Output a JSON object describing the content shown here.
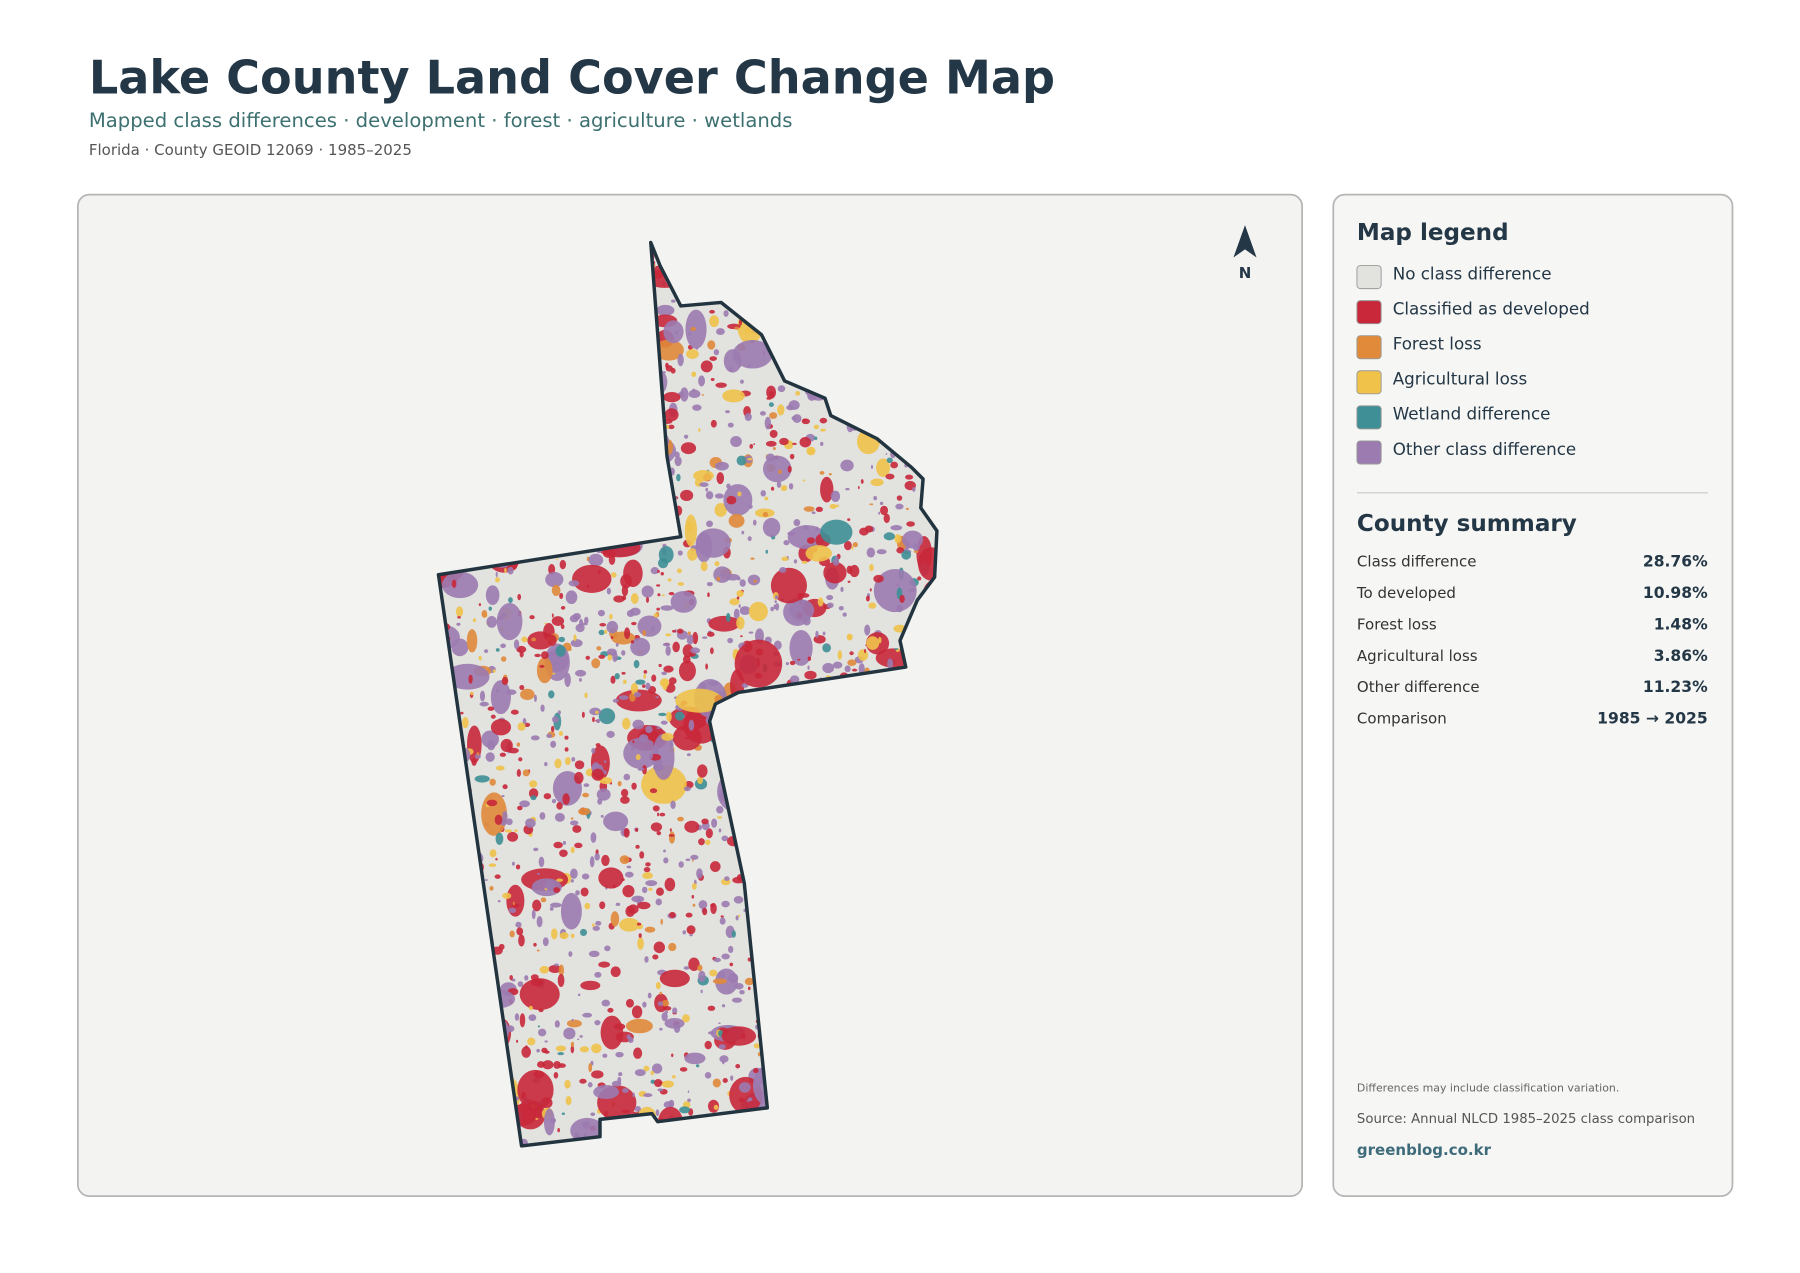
{
  "header": {
    "title": "Lake County Land Cover Change Map",
    "subtitle": "Mapped class differences · development · forest · agriculture · wetlands",
    "meta": "Florida · County GEOID 12069 · 1985–2025"
  },
  "map": {
    "north_label": "N"
  },
  "legend": {
    "title": "Map legend",
    "items": [
      {
        "label": "No class difference",
        "color": "#e2e2df"
      },
      {
        "label": "Classified as developed",
        "color": "#c8283a"
      },
      {
        "label": "Forest loss",
        "color": "#e08a3a"
      },
      {
        "label": "Agricultural loss",
        "color": "#f0c24a"
      },
      {
        "label": "Wetland difference",
        "color": "#3e8f96"
      },
      {
        "label": "Other class difference",
        "color": "#9b7bb0"
      }
    ]
  },
  "summary": {
    "title": "County summary",
    "rows": [
      [
        "Class difference",
        "28.76%"
      ],
      [
        "To developed",
        "10.98%"
      ],
      [
        "Forest loss",
        "1.48%"
      ],
      [
        "Agricultural loss",
        "3.86%"
      ],
      [
        "Other difference",
        "11.23%"
      ],
      [
        "Comparison",
        "1985 → 2025"
      ]
    ]
  },
  "footer": {
    "note": "Differences may include classification variation.",
    "source": "Source: Annual NLCD 1985–2025 class comparison",
    "site": "greenblog.co.kr"
  }
}
